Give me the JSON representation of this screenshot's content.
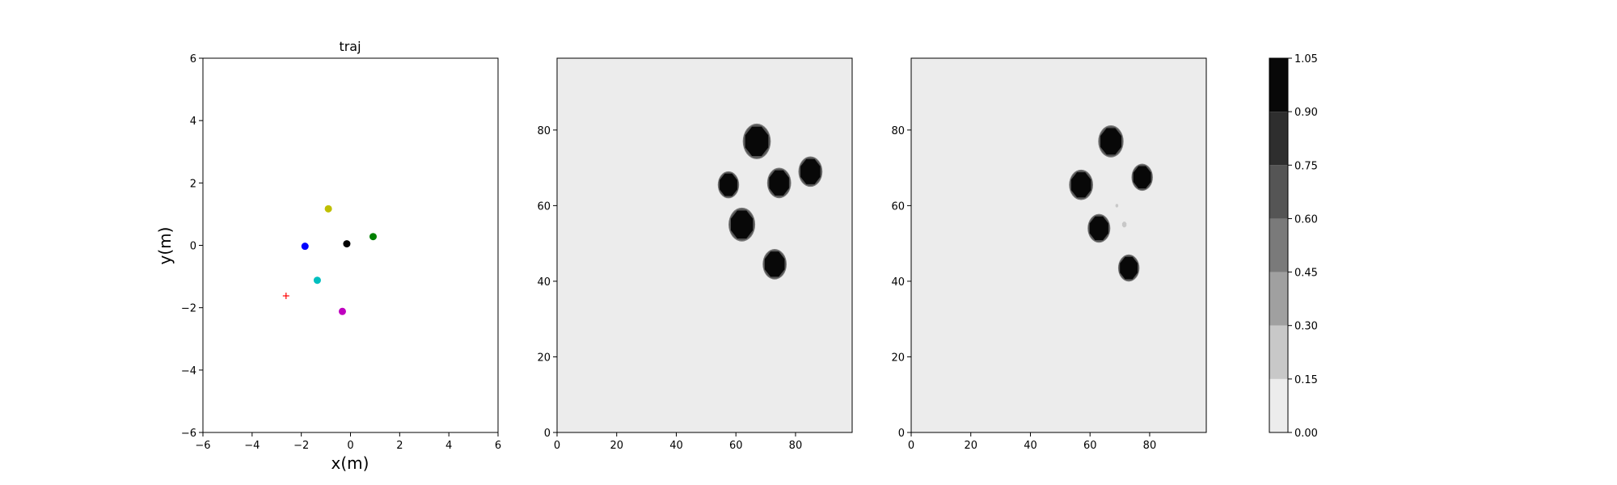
{
  "chart_data": [
    {
      "type": "scatter",
      "title": "traj",
      "xlabel": "x(m)",
      "ylabel": "y(m)",
      "xlim": [
        -6,
        6
      ],
      "ylim": [
        -6,
        6
      ],
      "xticks": [
        -6,
        -4,
        -2,
        0,
        2,
        4,
        6
      ],
      "yticks": [
        -6,
        -4,
        -2,
        0,
        2,
        4,
        6
      ],
      "grid": false,
      "points": [
        {
          "x": -0.15,
          "y": 0.05,
          "color": "#000000",
          "marker": "circle"
        },
        {
          "x": 0.92,
          "y": 0.28,
          "color": "#008000",
          "marker": "circle"
        },
        {
          "x": -0.9,
          "y": 1.17,
          "color": "#bfbf00",
          "marker": "circle"
        },
        {
          "x": -1.85,
          "y": -0.03,
          "color": "#0000ff",
          "marker": "circle"
        },
        {
          "x": -1.35,
          "y": -1.12,
          "color": "#00bfbf",
          "marker": "circle"
        },
        {
          "x": -0.33,
          "y": -2.12,
          "color": "#bf00bf",
          "marker": "circle"
        },
        {
          "x": -2.62,
          "y": -1.62,
          "color": "#ff0000",
          "marker": "plus"
        }
      ]
    },
    {
      "type": "heatmap",
      "xlim": [
        0,
        99
      ],
      "ylim": [
        0,
        99
      ],
      "xticks": [
        0,
        20,
        40,
        60,
        80
      ],
      "yticks": [
        0,
        20,
        40,
        60,
        80
      ],
      "background_value": 0.05,
      "blobs": [
        {
          "x": 67,
          "y": 77,
          "r": 4.2,
          "value": 1.0
        },
        {
          "x": 85,
          "y": 69,
          "r": 3.6,
          "value": 1.0
        },
        {
          "x": 57.5,
          "y": 65.5,
          "r": 3.2,
          "value": 1.0
        },
        {
          "x": 74.5,
          "y": 66,
          "r": 3.6,
          "value": 1.0
        },
        {
          "x": 62,
          "y": 55,
          "r": 4.0,
          "value": 1.0
        },
        {
          "x": 73,
          "y": 44.5,
          "r": 3.6,
          "value": 1.0
        }
      ]
    },
    {
      "type": "heatmap",
      "xlim": [
        0,
        99
      ],
      "ylim": [
        0,
        99
      ],
      "xticks": [
        0,
        20,
        40,
        60,
        80
      ],
      "yticks": [
        0,
        20,
        40,
        60,
        80
      ],
      "background_value": 0.05,
      "blobs": [
        {
          "x": 67,
          "y": 77,
          "r": 3.8,
          "value": 1.0
        },
        {
          "x": 57,
          "y": 65.5,
          "r": 3.6,
          "value": 1.0
        },
        {
          "x": 77.5,
          "y": 67.5,
          "r": 3.2,
          "value": 1.0
        },
        {
          "x": 63,
          "y": 54,
          "r": 3.4,
          "value": 1.0
        },
        {
          "x": 73,
          "y": 43.5,
          "r": 3.2,
          "value": 1.0
        },
        {
          "x": 71.5,
          "y": 55,
          "r": 0.8,
          "value": 0.25
        },
        {
          "x": 69,
          "y": 60,
          "r": 0.5,
          "value": 0.2
        }
      ]
    }
  ],
  "colorbar": {
    "levels": [
      0.0,
      0.15,
      0.3,
      0.45,
      0.6,
      0.75,
      0.9,
      1.05
    ],
    "tick_labels": [
      "0.00",
      "0.15",
      "0.30",
      "0.45",
      "0.60",
      "0.75",
      "0.90",
      "1.05"
    ],
    "colors": [
      "#ececec",
      "#c8c8c8",
      "#a0a0a0",
      "#7a7a7a",
      "#555555",
      "#2e2e2e",
      "#080808"
    ]
  }
}
